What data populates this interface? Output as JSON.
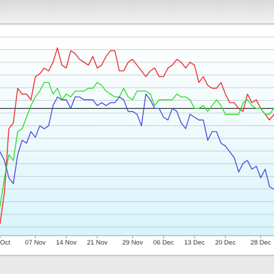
{
  "chart_data": {
    "type": "line",
    "x_ticks": [
      "Oct",
      "07 Nov",
      "14 Nov",
      "21 Nov",
      "29 Nov",
      "06 Dec",
      "13 Dec",
      "20 Dec",
      "28 Dec"
    ],
    "x": [
      "2022-10-30",
      "2022-10-31",
      "2022-11-01",
      "2022-11-02",
      "2022-11-03",
      "2022-11-04",
      "2022-11-05",
      "2022-11-06",
      "2022-11-07",
      "2022-11-08",
      "2022-11-09",
      "2022-11-10",
      "2022-11-11",
      "2022-11-12",
      "2022-11-13",
      "2022-11-14",
      "2022-11-15",
      "2022-11-16",
      "2022-11-17",
      "2022-11-18",
      "2022-11-19",
      "2022-11-20",
      "2022-11-21",
      "2022-11-22",
      "2022-11-23",
      "2022-11-24",
      "2022-11-25",
      "2022-11-26",
      "2022-11-27",
      "2022-11-28",
      "2022-11-29",
      "2022-11-30",
      "2022-12-01",
      "2022-12-02",
      "2022-12-03",
      "2022-12-04",
      "2022-12-05",
      "2022-12-06",
      "2022-12-07",
      "2022-12-08",
      "2022-12-09",
      "2022-12-10",
      "2022-12-11",
      "2022-12-12",
      "2022-12-13",
      "2022-12-14",
      "2022-12-15",
      "2022-12-16",
      "2022-12-17",
      "2022-12-18",
      "2022-12-19",
      "2022-12-20",
      "2022-12-21",
      "2022-12-22",
      "2022-12-23",
      "2022-12-24",
      "2022-12-25",
      "2022-12-26",
      "2022-12-27",
      "2022-12-28",
      "2022-12-29",
      "2022-12-30",
      "2022-12-31"
    ],
    "series": [
      {
        "color": "#ee2222",
        "values": [
          13.9,
          12.8,
          10.6,
          10.4,
          9.2,
          9.4,
          9.4,
          9.6,
          8.8,
          8.7,
          8.5,
          8.6,
          8.3,
          7.8,
          8.4,
          8.5,
          7.9,
          8.0,
          8.2,
          8.3,
          8.4,
          8.1,
          8.5,
          8.4,
          8.1,
          7.9,
          7.9,
          8.6,
          8.6,
          8.3,
          8.2,
          8.4,
          8.6,
          8.8,
          8.6,
          8.5,
          8.8,
          8.8,
          8.5,
          8.4,
          8.2,
          8.3,
          8.5,
          8.3,
          8.4,
          9.0,
          8.8,
          9.1,
          9.2,
          9.2,
          9.0,
          9.4,
          9.7,
          9.7,
          9.9,
          10.0,
          9.4,
          9.7,
          9.6,
          9.9,
          10.1,
          10.3,
          10.1
        ]
      },
      {
        "color": "#22dd22",
        "values": [
          13.3,
          12.3,
          11.5,
          11.7,
          10.7,
          10.6,
          10.2,
          9.8,
          9.5,
          9.3,
          9.0,
          9.0,
          9.4,
          9.2,
          9.6,
          9.4,
          9.5,
          9.3,
          9.3,
          9.3,
          9.2,
          9.2,
          9.0,
          9.1,
          9.3,
          9.4,
          9.5,
          9.5,
          9.2,
          9.5,
          9.6,
          9.3,
          9.3,
          9.3,
          9.4,
          9.8,
          9.6,
          9.6,
          9.6,
          9.6,
          9.4,
          9.5,
          9.5,
          9.6,
          9.9,
          9.9,
          9.8,
          10.0,
          9.8,
          9.6,
          9.8,
          10.1,
          10.1,
          10.1,
          10.1,
          9.7,
          9.6,
          9.8,
          9.9,
          9.9,
          10.1,
          10.1,
          9.9
        ]
      },
      {
        "color": "#4444dd",
        "values": [
          11.4,
          11.7,
          12.3,
          12.5,
          11.5,
          11.0,
          11.1,
          10.7,
          10.9,
          10.5,
          10.6,
          10.5,
          9.8,
          9.5,
          9.6,
          9.6,
          9.9,
          9.5,
          9.5,
          9.6,
          9.6,
          9.6,
          9.8,
          9.7,
          9.8,
          9.7,
          9.7,
          9.5,
          9.6,
          10.0,
          10.0,
          10.1,
          10.5,
          9.4,
          9.6,
          9.9,
          9.9,
          10.2,
          10.3,
          9.9,
          10.0,
          10.4,
          10.6,
          10.1,
          10.2,
          10.3,
          10.3,
          11.0,
          10.7,
          10.7,
          11.1,
          11.2,
          11.4,
          11.6,
          12.1,
          11.8,
          11.7,
          12.0,
          11.9,
          12.3,
          12.0,
          12.6,
          12.7
        ]
      }
    ],
    "y_range": [
      7,
      14.3
    ],
    "reference_line": 9.9,
    "legend": "none",
    "grid": "horizontal",
    "title": "",
    "xlabel": "",
    "ylabel": ""
  }
}
